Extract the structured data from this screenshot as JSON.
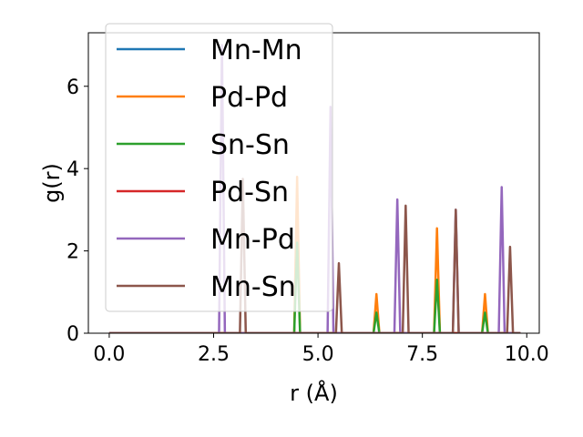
{
  "chart_data": {
    "type": "line",
    "title": "",
    "xlabel": "r (Å)",
    "ylabel": "g(r)",
    "xlim": [
      -0.5,
      10.3
    ],
    "ylim": [
      0,
      7.3
    ],
    "xticks": [
      0.0,
      2.5,
      5.0,
      7.5,
      10.0
    ],
    "xtick_labels": [
      "0.0",
      "2.5",
      "5.0",
      "7.5",
      "10.0"
    ],
    "yticks": [
      0,
      2,
      4,
      6
    ],
    "ytick_labels": [
      "0",
      "2",
      "4",
      "6"
    ],
    "grid": false,
    "legend_position": "upper-left",
    "peak_half_width": 0.07,
    "r_max": 9.85,
    "series": [
      {
        "name": "Mn-Mn",
        "color": "#1f77b4",
        "peaks": []
      },
      {
        "name": "Pd-Pd",
        "color": "#ff7f0e",
        "peaks": [
          [
            4.5,
            3.8
          ],
          [
            6.4,
            0.95
          ],
          [
            7.85,
            2.55
          ],
          [
            9.0,
            0.95
          ]
        ]
      },
      {
        "name": "Sn-Sn",
        "color": "#2ca02c",
        "peaks": [
          [
            4.5,
            2.2
          ],
          [
            6.4,
            0.5
          ],
          [
            7.85,
            1.3
          ],
          [
            9.0,
            0.5
          ]
        ]
      },
      {
        "name": "Pd-Sn",
        "color": "#d62728",
        "peaks": []
      },
      {
        "name": "Mn-Pd",
        "color": "#9467bd",
        "peaks": [
          [
            2.7,
            7.0
          ],
          [
            5.3,
            5.5
          ],
          [
            6.9,
            3.25
          ],
          [
            8.3,
            3.0
          ],
          [
            9.4,
            3.55
          ]
        ]
      },
      {
        "name": "Mn-Sn",
        "color": "#8c564b",
        "peaks": [
          [
            3.2,
            3.75
          ],
          [
            5.5,
            1.7
          ],
          [
            7.1,
            3.1
          ],
          [
            8.3,
            3.0
          ],
          [
            9.6,
            2.1
          ]
        ]
      }
    ]
  }
}
